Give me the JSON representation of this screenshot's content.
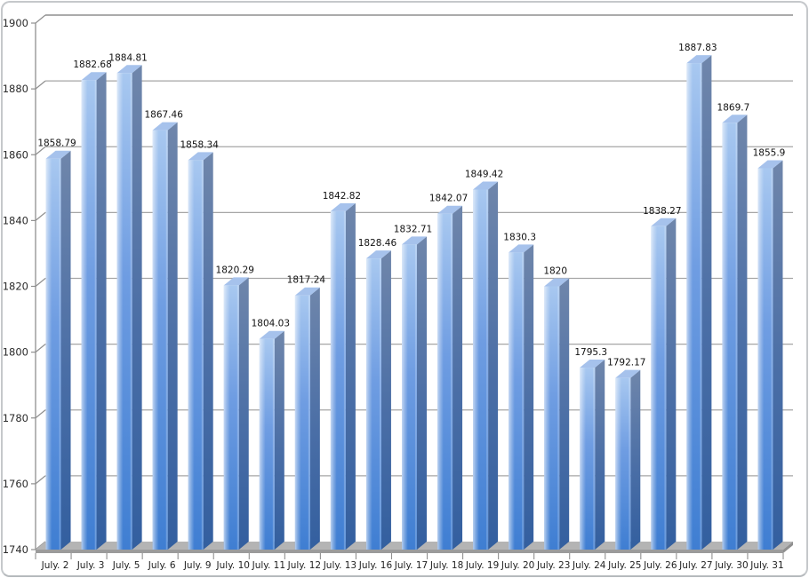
{
  "chart_data": {
    "type": "bar",
    "style": "3d-gradient-bars",
    "title": "",
    "xlabel": "",
    "ylabel": "",
    "legend": "none",
    "grid": true,
    "ylim": [
      1740,
      1900
    ],
    "y_ticks": [
      1740,
      1760,
      1780,
      1800,
      1820,
      1840,
      1860,
      1880,
      1900
    ],
    "categories": [
      "July. 2",
      "July. 3",
      "July. 5",
      "July. 6",
      "July. 9",
      "July. 10",
      "July. 11",
      "July. 12",
      "July. 13",
      "July. 16",
      "July. 17",
      "July. 18",
      "July. 19",
      "July. 20",
      "July. 23",
      "July. 24",
      "July. 25",
      "July. 26",
      "July. 27",
      "July. 30",
      "July. 31"
    ],
    "values": [
      1858.79,
      1882.68,
      1884.81,
      1867.46,
      1858.34,
      1820.29,
      1804.03,
      1817.24,
      1842.82,
      1828.46,
      1832.71,
      1842.07,
      1849.42,
      1830.3,
      1820,
      1795.3,
      1792.17,
      1838.27,
      1887.83,
      1869.7,
      1855.9
    ],
    "value_labels": [
      "1858.79",
      "1882.68",
      "1884.81",
      "1867.46",
      "1858.34",
      "1820.29",
      "1804.03",
      "1817.24",
      "1842.82",
      "1828.46",
      "1832.71",
      "1842.07",
      "1849.42",
      "1830.3",
      "1820",
      "1795.3",
      "1792.17",
      "1838.27",
      "1887.83",
      "1869.7",
      "1855.9"
    ]
  },
  "colors": {
    "bar_face_top": "#a8c8f0",
    "bar_face_mid": "#6f9de2",
    "bar_face_bottom": "#3f7ed2",
    "bar_side_top": "#6f86ab",
    "bar_side_mid": "#4a6ea6",
    "bar_side_bottom": "#335f9f",
    "bar_top_face": "#a6c2ec",
    "floor_top": "#b4b4b4",
    "floor_front": "#9b9b9b",
    "floor_cap": "#8f8f8f",
    "gridline": "#a6a6a6",
    "gridline_top": "#8f8f8f",
    "axis": "#8f8f8f",
    "text": "#1a1a1a",
    "frame_border": "#c5c8cb"
  }
}
